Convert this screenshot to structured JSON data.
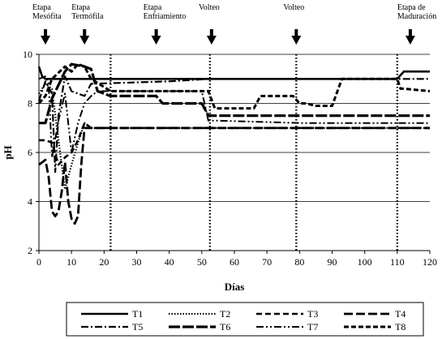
{
  "chart_data": {
    "type": "line",
    "title": "",
    "xlabel": "Días",
    "ylabel": "pH",
    "xlim": [
      0,
      120
    ],
    "ylim": [
      2,
      10
    ],
    "xticks": [
      "0",
      "10",
      "20",
      "30",
      "40",
      "50",
      "60",
      "70",
      "80",
      "90",
      "100",
      "110",
      "120"
    ],
    "yticks": [
      "2",
      "4",
      "6",
      "8",
      "10"
    ],
    "grid_y": true,
    "legend_position": "bottom",
    "stage_lines_x": [
      22,
      52.5,
      79,
      110
    ],
    "stage_annotations": [
      {
        "lines": [
          "Etapa",
          "Mesófita"
        ],
        "x": 2
      },
      {
        "lines": [
          "Etapa",
          "Termófila"
        ],
        "x": 14
      },
      {
        "lines": [
          "Etapa",
          "Enfriamiento"
        ],
        "x": 36
      },
      {
        "lines": [
          "Volteo"
        ],
        "x": 53
      },
      {
        "lines": [
          "Volteo"
        ],
        "x": 79
      },
      {
        "lines": [
          "Etapa de",
          "Maduración"
        ],
        "x": 114
      }
    ],
    "series": [
      {
        "name": "T1",
        "style": "solid",
        "x": [
          0,
          1,
          2,
          110,
          112,
          120
        ],
        "y": [
          9.5,
          9.1,
          9.0,
          9.0,
          9.3,
          9.3
        ]
      },
      {
        "name": "T2",
        "style": "dotted",
        "x": [
          0,
          2,
          4,
          6,
          8,
          10,
          12,
          14,
          16,
          18,
          120
        ],
        "y": [
          8.4,
          8.8,
          8.6,
          6.5,
          4.5,
          5.5,
          6.4,
          7.2,
          7.0,
          7.0,
          7.0
        ]
      },
      {
        "name": "T3",
        "style": "dash",
        "x": [
          0,
          2,
          4,
          6,
          8,
          10,
          12,
          14,
          16,
          20,
          120
        ],
        "y": [
          6.5,
          6.5,
          6.4,
          5.5,
          5.8,
          6.0,
          6.5,
          7.2,
          7.0,
          7.0,
          7.0
        ]
      },
      {
        "name": "T4",
        "style": "longdash",
        "x": [
          0,
          2,
          3,
          4,
          5,
          6,
          7,
          8,
          9,
          10,
          11,
          12,
          13,
          14,
          15,
          16,
          120
        ],
        "y": [
          5.5,
          5.7,
          5.0,
          3.6,
          3.4,
          3.6,
          4.4,
          5.6,
          4.0,
          3.3,
          3.1,
          3.4,
          5.5,
          7.0,
          7.0,
          7.0,
          7.0
        ]
      },
      {
        "name": "T5",
        "style": "dashdot",
        "x": [
          0,
          2,
          4,
          5,
          6,
          8,
          10,
          14,
          16,
          40,
          52,
          120
        ],
        "y": [
          8.1,
          8.9,
          8.4,
          5.2,
          7.5,
          9.1,
          8.5,
          8.3,
          8.8,
          8.9,
          9.0,
          9.0
        ]
      },
      {
        "name": "T6",
        "style": "longdash-heavy",
        "x": [
          0,
          2,
          4,
          8,
          10,
          14,
          16,
          18,
          22,
          36,
          38,
          40,
          50,
          52,
          54,
          120
        ],
        "y": [
          7.2,
          7.2,
          8.2,
          9.3,
          9.6,
          9.5,
          9.4,
          8.5,
          8.3,
          8.3,
          8.0,
          8.0,
          8.0,
          7.5,
          7.5,
          7.5
        ]
      },
      {
        "name": "T7",
        "style": "dash-dotdot",
        "x": [
          0,
          2,
          3,
          4,
          6,
          8,
          10,
          12,
          14,
          16,
          18,
          50,
          52,
          54,
          80,
          82,
          90,
          120
        ],
        "y": [
          9.0,
          9.1,
          8.8,
          5.8,
          7.3,
          8.4,
          6.0,
          7.2,
          8.0,
          8.3,
          8.5,
          8.5,
          7.3,
          7.3,
          7.2,
          7.2,
          7.2,
          7.2
        ]
      },
      {
        "name": "T8",
        "style": "dash-short",
        "x": [
          0,
          2,
          4,
          8,
          10,
          12,
          14,
          16,
          22,
          40,
          52,
          54,
          66,
          68,
          78,
          80,
          82,
          85,
          90,
          93,
          110,
          111,
          112,
          120
        ],
        "y": [
          8.0,
          8.3,
          9.0,
          9.5,
          9.3,
          9.6,
          9.5,
          9.0,
          8.5,
          8.5,
          8.5,
          7.8,
          7.8,
          8.3,
          8.3,
          8.0,
          8.0,
          7.9,
          7.9,
          9.0,
          9.0,
          8.6,
          8.6,
          8.5
        ]
      }
    ]
  }
}
